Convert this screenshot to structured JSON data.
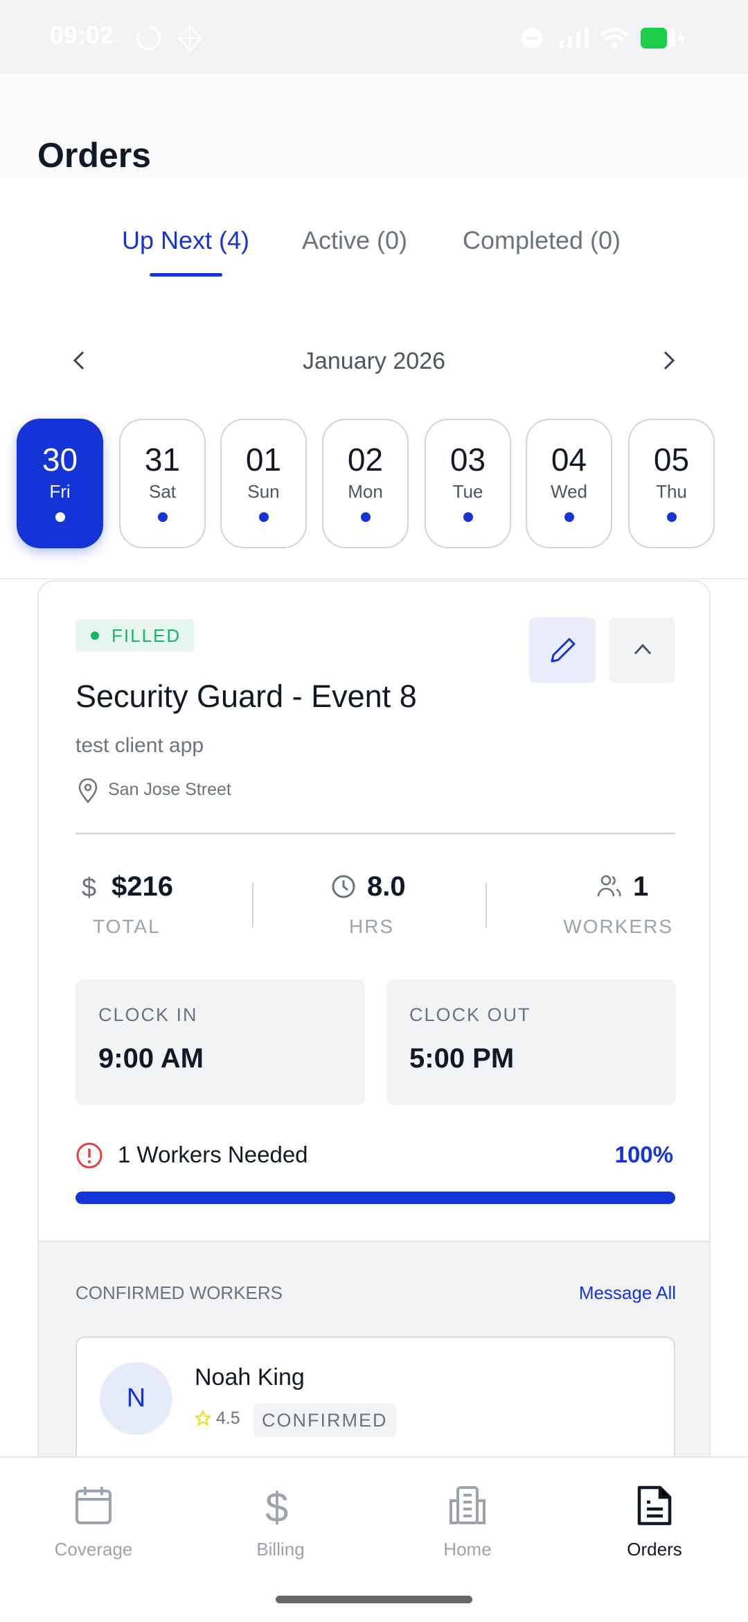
{
  "status_bar": {
    "time": "09:02",
    "battery_color": "#1ccd4a"
  },
  "header": {
    "title": "Orders"
  },
  "tabs": [
    {
      "label": "Up Next (4)",
      "active": true
    },
    {
      "label": "Active (0)"
    },
    {
      "label": "Completed (0)"
    }
  ],
  "calendar": {
    "month": "January 2026",
    "days": [
      {
        "date": "30",
        "weekday": "Fri",
        "selected": true
      },
      {
        "date": "31",
        "weekday": "Sat"
      },
      {
        "date": "01",
        "weekday": "Sun"
      },
      {
        "date": "02",
        "weekday": "Mon"
      },
      {
        "date": "03",
        "weekday": "Tue"
      },
      {
        "date": "04",
        "weekday": "Wed"
      },
      {
        "date": "05",
        "weekday": "Thu"
      }
    ]
  },
  "order": {
    "status": "FILLED",
    "title": "Security Guard - Event 8",
    "client": "test client app",
    "location": "San Jose Street",
    "total_value": "$216",
    "total_label": "TOTAL",
    "hours_value": "8.0",
    "hours_label": "HRS",
    "workers_value": "1",
    "workers_label": "WORKERS",
    "clock_in_label": "CLOCK IN",
    "clock_in": "9:00 AM",
    "clock_out_label": "CLOCK OUT",
    "clock_out": "5:00 PM",
    "workers_needed": "1 Workers Needed",
    "fill_percent_text": "100%",
    "fill_percent": 100
  },
  "confirmed": {
    "label": "CONFIRMED WORKERS",
    "message_all": "Message All",
    "workers": [
      {
        "initial": "N",
        "name": "Noah King",
        "rating": "4.5",
        "status": "CONFIRMED"
      }
    ]
  },
  "nav": [
    {
      "label": "Coverage",
      "icon": "calendar-icon"
    },
    {
      "label": "Billing",
      "icon": "dollar-icon"
    },
    {
      "label": "Home",
      "icon": "building-icon"
    },
    {
      "label": "Orders",
      "icon": "document-icon",
      "active": true
    }
  ],
  "colors": {
    "accent": "#1434d8",
    "success": "#14b86a",
    "danger": "#e53e3e"
  }
}
